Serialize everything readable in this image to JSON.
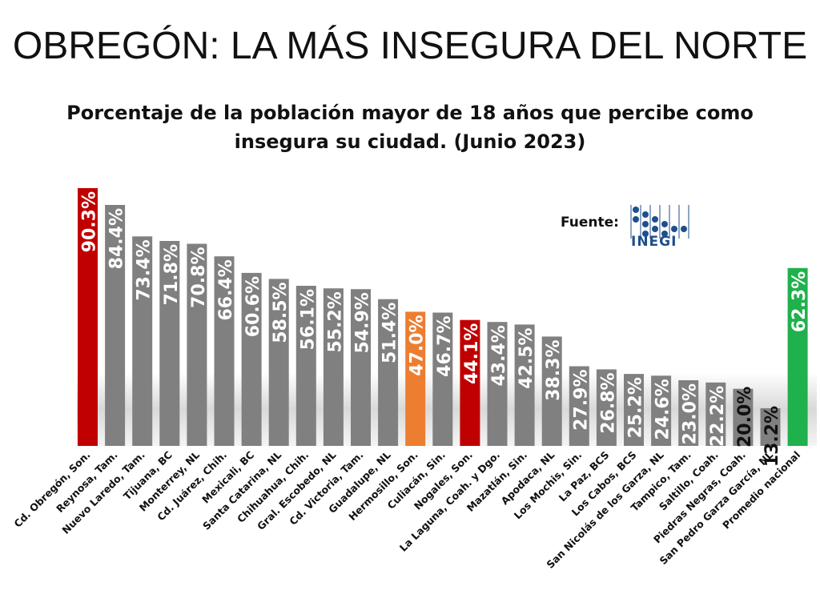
{
  "title": "OBREGÓN: LA MÁS INSEGURA DEL NORTE",
  "subtitle": "Porcentaje de la población mayor de 18 años que percibe como insegura su ciudad. (Junio 2023)",
  "source": {
    "label": "Fuente:",
    "logo_text": "INEGI",
    "logo_icon": "inegi-logo-icon"
  },
  "colors": {
    "default": "#808080",
    "highlight_red": "#c00000",
    "highlight_orange": "#ed7d31",
    "national_green": "#1fb14c"
  },
  "chart_data": {
    "type": "bar",
    "title": "Porcentaje de la población mayor de 18 años que percibe como insegura su ciudad. (Junio 2023)",
    "xlabel": "",
    "ylabel": "",
    "ylim": [
      0,
      100
    ],
    "grid": false,
    "categories": [
      "Cd. Obregón, Son.",
      "Reynosa, Tam.",
      "Nuevo Laredo, Tam.",
      "Tijuana, BC",
      "Monterrey, NL",
      "Cd. Juárez, Chih.",
      "Mexicali, BC",
      "Santa Catarina, NL",
      "Chihuahua, Chih.",
      "Gral. Escobedo, NL",
      "Cd. Victoria, Tam.",
      "Guadalupe, NL",
      "Hermosillo, Son.",
      "Culiacán, Sin.",
      "Nogales, Son.",
      "La Laguna, Coah. y Dgo.",
      "Mazatlán, Sin.",
      "Apodaca, NL",
      "Los Mochis, Sin.",
      "La Paz, BCS",
      "Los Cabos, BCS",
      "San Nicolás de los Garza, NL",
      "Tampico, Tam.",
      "Saltillo, Coah.",
      "Piedras Negras, Coah.",
      "San Pedro Garza García, NL",
      "Promedio nacional"
    ],
    "values": [
      90.3,
      84.4,
      73.4,
      71.8,
      70.8,
      66.4,
      60.6,
      58.5,
      56.1,
      55.2,
      54.9,
      51.4,
      47.0,
      46.7,
      44.1,
      43.4,
      42.5,
      38.3,
      27.9,
      26.8,
      25.2,
      24.6,
      23.0,
      22.2,
      20.0,
      13.2,
      62.3
    ],
    "labels": [
      "90.3%",
      "84.4%",
      "73.4%",
      "71.8%",
      "70.8%",
      "66.4%",
      "60.6%",
      "58.5%",
      "56.1%",
      "55.2%",
      "54.9%",
      "51.4%",
      "47.0%",
      "46.7%",
      "44.1%",
      "43.4%",
      "42.5%",
      "38.3%",
      "27.9%",
      "26.8%",
      "25.2%",
      "24.6%",
      "23.0%",
      "22.2%",
      "20.0%",
      "13.2%",
      "62.3%"
    ],
    "bar_colors": [
      "#c00000",
      "#808080",
      "#808080",
      "#808080",
      "#808080",
      "#808080",
      "#808080",
      "#808080",
      "#808080",
      "#808080",
      "#808080",
      "#808080",
      "#ed7d31",
      "#808080",
      "#c00000",
      "#808080",
      "#808080",
      "#808080",
      "#808080",
      "#808080",
      "#808080",
      "#808080",
      "#808080",
      "#808080",
      "#808080",
      "#808080",
      "#1fb14c"
    ]
  }
}
